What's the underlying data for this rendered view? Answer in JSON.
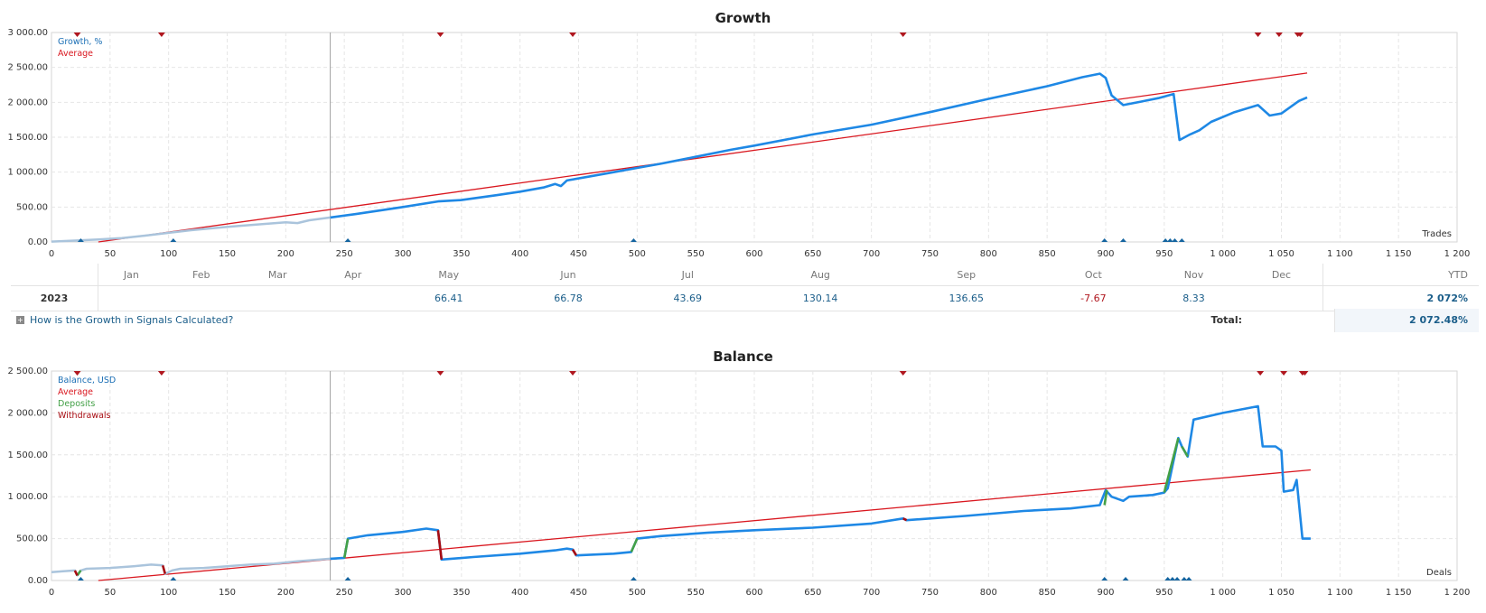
{
  "chart_data": [
    {
      "type": "line",
      "title": "Growth",
      "x_axis_label": "Trades",
      "xlim": [
        0,
        1200
      ],
      "ylim": [
        0,
        3000
      ],
      "x_ticks": [
        0,
        50,
        100,
        150,
        200,
        250,
        300,
        350,
        400,
        450,
        500,
        550,
        600,
        650,
        700,
        750,
        800,
        850,
        900,
        950,
        1000,
        1050,
        1100,
        1150,
        1200
      ],
      "x_tick_labels": [
        "0",
        "50",
        "100",
        "150",
        "200",
        "250",
        "300",
        "350",
        "400",
        "450",
        "500",
        "550",
        "600",
        "650",
        "700",
        "750",
        "800",
        "850",
        "900",
        "950",
        "1 000",
        "1 050",
        "1 100",
        "1 150",
        "1 200"
      ],
      "y_ticks": [
        0,
        500,
        1000,
        1500,
        2000,
        2500,
        3000
      ],
      "y_tick_labels": [
        "0.00",
        "500.00",
        "1 000.00",
        "1 500.00",
        "2 000.00",
        "2 500.00",
        "3 000.00"
      ],
      "grid": true,
      "legend_placement": "top-left",
      "divider_x": 238,
      "series": [
        {
          "name": "Growth, %",
          "color": "#1e88e5",
          "faded_color": "#aac4dc",
          "faded_until_x": 238,
          "x": [
            0,
            20,
            40,
            60,
            80,
            100,
            120,
            140,
            160,
            180,
            200,
            210,
            220,
            238,
            260,
            280,
            300,
            330,
            350,
            380,
            400,
            420,
            430,
            435,
            440,
            460,
            480,
            500,
            520,
            550,
            580,
            600,
            650,
            700,
            750,
            800,
            850,
            880,
            895,
            900,
            905,
            915,
            930,
            945,
            958,
            963,
            972,
            980,
            990,
            1010,
            1030,
            1040,
            1050,
            1065,
            1072
          ],
          "y": [
            5,
            20,
            35,
            55,
            90,
            130,
            170,
            200,
            230,
            255,
            280,
            270,
            310,
            350,
            400,
            450,
            500,
            580,
            600,
            670,
            720,
            780,
            830,
            800,
            880,
            940,
            1000,
            1060,
            1120,
            1220,
            1320,
            1380,
            1540,
            1680,
            1860,
            2050,
            2230,
            2360,
            2410,
            2350,
            2100,
            1960,
            2010,
            2060,
            2120,
            1460,
            1540,
            1600,
            1720,
            1860,
            1960,
            1810,
            1840,
            2020,
            2070
          ]
        },
        {
          "name": "Average",
          "color": "#d9171f",
          "x": [
            40,
            1072
          ],
          "y": [
            0,
            2420
          ]
        }
      ],
      "top_markers_x": [
        22,
        94,
        332,
        445,
        727,
        1030,
        1048,
        1064,
        1066
      ],
      "bottom_markers_x": [
        25,
        104,
        253,
        497,
        899,
        915,
        951,
        955,
        959,
        965
      ]
    },
    {
      "type": "line",
      "title": "Balance",
      "x_axis_label": "Deals",
      "xlim": [
        0,
        1200
      ],
      "ylim": [
        0,
        2500
      ],
      "x_ticks": [
        0,
        50,
        100,
        150,
        200,
        250,
        300,
        350,
        400,
        450,
        500,
        550,
        600,
        650,
        700,
        750,
        800,
        850,
        900,
        950,
        1000,
        1050,
        1100,
        1150,
        1200
      ],
      "x_tick_labels": [
        "0",
        "50",
        "100",
        "150",
        "200",
        "250",
        "300",
        "350",
        "400",
        "450",
        "500",
        "550",
        "600",
        "650",
        "700",
        "750",
        "800",
        "850",
        "900",
        "950",
        "1 000",
        "1 050",
        "1 100",
        "1 150",
        "1 200"
      ],
      "y_ticks": [
        0,
        500,
        1000,
        1500,
        2000,
        2500
      ],
      "y_tick_labels": [
        "0.00",
        "500.00",
        "1 000.00",
        "1 500.00",
        "2 000.00",
        "2 500.00"
      ],
      "grid": true,
      "legend_placement": "top-left",
      "divider_x": 238,
      "series": [
        {
          "name": "Balance, USD",
          "color": "#1e88e5",
          "faded_color": "#aac4dc",
          "faded_until_x": 238,
          "x": [
            0,
            10,
            20,
            22,
            25,
            30,
            50,
            70,
            85,
            95,
            97,
            103,
            110,
            130,
            150,
            170,
            190,
            210,
            238,
            250,
            253,
            270,
            300,
            320,
            330,
            333,
            360,
            400,
            430,
            440,
            445,
            448,
            480,
            495,
            500,
            520,
            560,
            600,
            650,
            700,
            727,
            730,
            780,
            830,
            870,
            895,
            900,
            905,
            915,
            920,
            940,
            950,
            953,
            962,
            965,
            970,
            975,
            1000,
            1030,
            1034,
            1045,
            1050,
            1052,
            1060,
            1063,
            1068,
            1075
          ],
          "y": [
            100,
            110,
            120,
            60,
            120,
            140,
            150,
            170,
            190,
            180,
            80,
            120,
            140,
            150,
            170,
            190,
            200,
            230,
            260,
            270,
            500,
            540,
            580,
            620,
            600,
            250,
            280,
            320,
            360,
            380,
            370,
            300,
            320,
            340,
            500,
            530,
            570,
            600,
            630,
            680,
            740,
            720,
            770,
            830,
            860,
            900,
            1080,
            1000,
            950,
            1000,
            1020,
            1050,
            1100,
            1700,
            1600,
            1480,
            1920,
            2000,
            2080,
            1600,
            1600,
            1550,
            1060,
            1080,
            1200,
            500,
            500
          ]
        },
        {
          "name": "Average",
          "color": "#d9171f",
          "x": [
            40,
            1075
          ],
          "y": [
            0,
            1320
          ]
        },
        {
          "name": "Deposits",
          "color": "#43a047",
          "segments": [
            [
              [
                250,
                270
              ],
              [
                253,
                500
              ]
            ],
            [
              [
                495,
                340
              ],
              [
                500,
                500
              ]
            ],
            [
              [
                899,
                900
              ],
              [
                901,
                1080
              ]
            ],
            [
              [
                950,
                1050
              ],
              [
                962,
                1700
              ]
            ],
            [
              [
                965,
                1600
              ],
              [
                970,
                1480
              ]
            ],
            [
              [
                22,
                60
              ],
              [
                25,
                120
              ]
            ]
          ]
        },
        {
          "name": "Withdrawals",
          "color": "#a80c12",
          "segments": [
            [
              [
                95,
                180
              ],
              [
                97,
                80
              ]
            ],
            [
              [
                330,
                600
              ],
              [
                333,
                250
              ]
            ],
            [
              [
                445,
                370
              ],
              [
                448,
                300
              ]
            ],
            [
              [
                727,
                740
              ],
              [
                730,
                720
              ]
            ],
            [
              [
                20,
                120
              ],
              [
                22,
                60
              ]
            ]
          ]
        }
      ],
      "top_markers_x": [
        22,
        94,
        332,
        445,
        727,
        1032,
        1052,
        1068,
        1070
      ],
      "bottom_markers_x": [
        25,
        104,
        253,
        497,
        899,
        917,
        953,
        957,
        961,
        967,
        971
      ]
    }
  ],
  "months_table": {
    "headers": [
      "Jan",
      "Feb",
      "Mar",
      "Apr",
      "May",
      "Jun",
      "Jul",
      "Aug",
      "Sep",
      "Oct",
      "Nov",
      "Dec"
    ],
    "ytd_header": "YTD",
    "year": "2023",
    "values": [
      "",
      "",
      "",
      "",
      "66.41",
      "66.78",
      "43.69",
      "130.14",
      "136.65",
      "-7.67",
      "8.33",
      ""
    ],
    "ytd": "2 072%"
  },
  "footer": {
    "help_link": "How is the Growth in Signals Calculated?",
    "total_label": "Total:",
    "total_value": "2 072.48%"
  }
}
